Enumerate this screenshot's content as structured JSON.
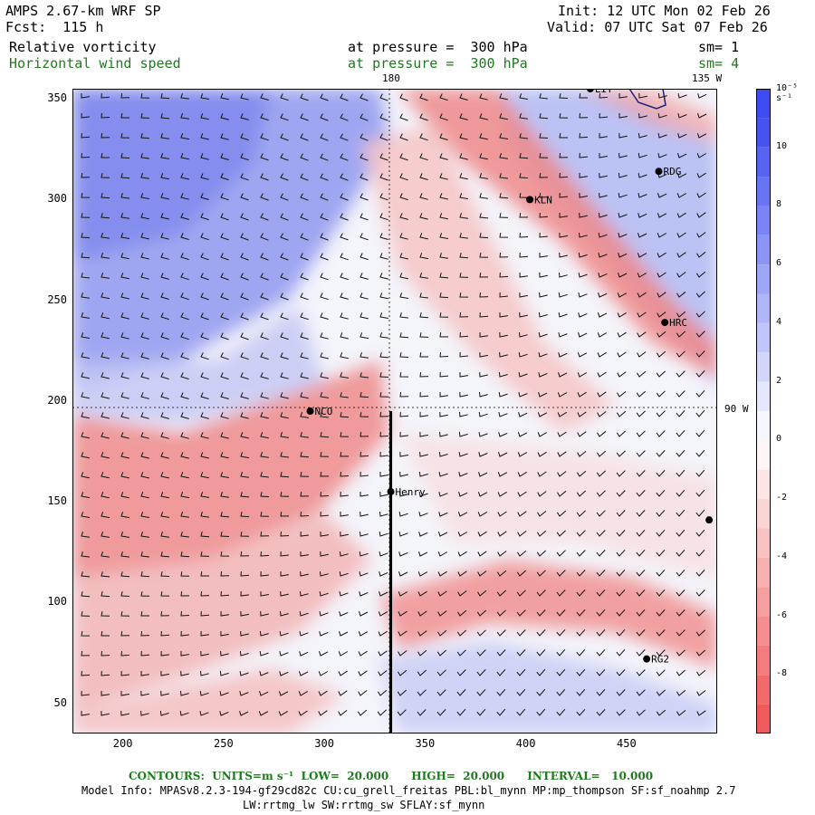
{
  "header": {
    "title": "AMPS 2.67-km WRF SP",
    "forecast": "Fcst:  115 h",
    "init": "Init: 12 UTC Mon 02 Feb 26",
    "valid": "Valid: 07 UTC Sat 07 Feb 26",
    "field1_name": "Relative vorticity",
    "field1_level": "at pressure =  300 hPa",
    "field1_sm": "sm= 1",
    "field2_name": "Horizontal wind speed",
    "field2_level": "at pressure =  300 hPa",
    "field2_sm": "sm= 4"
  },
  "map_labels": {
    "meridian_180": "180",
    "meridian_135w": "135 W",
    "parallel_90w": "90 W"
  },
  "stations": [
    {
      "name": "LIT",
      "x": 432,
      "y": 355
    },
    {
      "name": "RDG",
      "x": 466,
      "y": 314
    },
    {
      "name": "KLN",
      "x": 402,
      "y": 300
    },
    {
      "name": "HRC",
      "x": 469,
      "y": 239
    },
    {
      "name": "NCO",
      "x": 293,
      "y": 195
    },
    {
      "name": "Henry",
      "x": 333,
      "y": 155
    },
    {
      "name": "",
      "x": 491,
      "y": 141
    },
    {
      "name": "RG2",
      "x": 460,
      "y": 72
    }
  ],
  "axes": {
    "x_ticks": [
      "200",
      "250",
      "300",
      "350",
      "400",
      "450"
    ],
    "x_tick_values": [
      200,
      250,
      300,
      350,
      400,
      450
    ],
    "y_ticks": [
      "350",
      "300",
      "250",
      "200",
      "150",
      "100",
      "50"
    ],
    "y_tick_values": [
      350,
      300,
      250,
      200,
      150,
      100,
      50
    ],
    "x_range": [
      175,
      495
    ],
    "y_range": [
      35,
      355
    ]
  },
  "colorbar": {
    "units": "10⁻⁵ s⁻¹",
    "labels": [
      "10",
      "8",
      "6",
      "4",
      "2",
      "0",
      "-2",
      "-4",
      "-6",
      "-8"
    ],
    "label_values": [
      10,
      8,
      6,
      4,
      2,
      0,
      -2,
      -4,
      -6,
      -8
    ],
    "range": [
      -10,
      12
    ],
    "color_positive": "#3c4cf0",
    "color_negative": "#f05a5a",
    "color_zero": "#ffffff"
  },
  "footer": {
    "contours": "CONTOURS:  UNITS=m s⁻¹  LOW=  20.000      HIGH=  20.000      INTERVAL=   10.000",
    "model_info": "Model Info: MPASv8.2.3-194-gf29cd82c CU:cu_grell_freitas PBL:bl_mynn MP:mp_thompson SF:sf_noahmp 2.7",
    "model_info2": "LW:rrtmg_lw SW:rrtmg_sw SFLAY:sf_mynn"
  },
  "cross_section": {
    "x": 333,
    "y_from": 35,
    "y_to": 195
  }
}
